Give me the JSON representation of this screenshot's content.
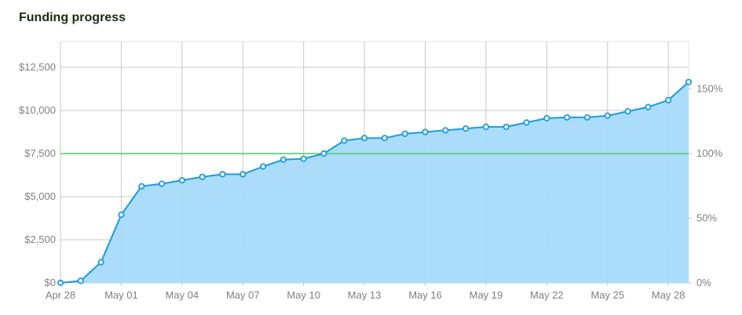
{
  "title": "Funding progress",
  "chart_data": {
    "type": "area",
    "title": "Funding progress",
    "xlabel": "",
    "ylabel": "",
    "x_start": "Apr 28",
    "x_tick_labels": [
      "Apr 28",
      "May 01",
      "May 04",
      "May 07",
      "May 10",
      "May 13",
      "May 16",
      "May 19",
      "May 22",
      "May 25",
      "May 28"
    ],
    "y_tick_labels": [
      "$0",
      "$2,500",
      "$5,000",
      "$7,500",
      "$10,000",
      "$12,500"
    ],
    "y_tick_values": [
      0,
      2500,
      5000,
      7500,
      10000,
      12500
    ],
    "y2_tick_labels": [
      "0%",
      "50%",
      "100%",
      "150%"
    ],
    "y2_tick_values": [
      0,
      50,
      100,
      150
    ],
    "ylim": [
      0,
      14000
    ],
    "goal_value": 7500,
    "grid": true,
    "series": [
      {
        "x": [
          "Apr 28",
          "Apr 29",
          "Apr 30",
          "May 01",
          "May 02",
          "May 03",
          "May 04",
          "May 05",
          "May 06",
          "May 07",
          "May 08",
          "May 09",
          "May 10",
          "May 11",
          "May 12",
          "May 13",
          "May 14",
          "May 15",
          "May 16",
          "May 17",
          "May 18",
          "May 19",
          "May 20",
          "May 21",
          "May 22",
          "May 23",
          "May 24",
          "May 25",
          "May 26",
          "May 27",
          "May 28",
          "May 29"
        ],
        "values": [
          0,
          120,
          1200,
          3950,
          5600,
          5750,
          5950,
          6150,
          6300,
          6300,
          6750,
          7150,
          7200,
          7500,
          8250,
          8400,
          8400,
          8650,
          8750,
          8850,
          8950,
          9050,
          9050,
          9300,
          9550,
          9600,
          9600,
          9700,
          9950,
          10200,
          10600,
          11650
        ]
      }
    ],
    "colors": {
      "area_fill": "#a7dbfb",
      "line": "#1a9be0",
      "marker_fill": "#ffffff",
      "goal_line": "#4cc86a",
      "grid": "#c8c8c8",
      "axis_text": "#808080",
      "title": "#1c2a10"
    }
  }
}
